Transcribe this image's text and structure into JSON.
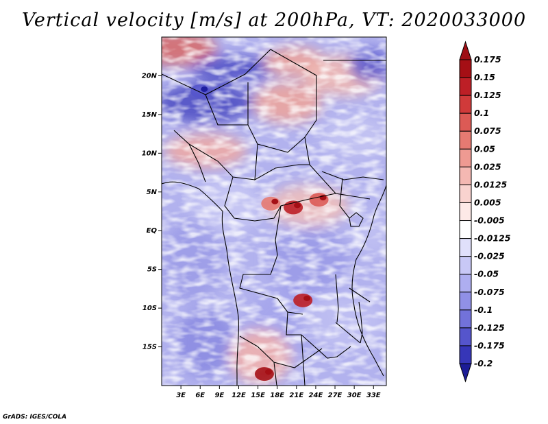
{
  "title": "Vertical velocity [m/s] at 200hPa, VT: 2020033000",
  "credit": "GrADS: IGES/COLA",
  "chart_data": {
    "type": "heatmap",
    "variable": "Vertical velocity",
    "units": "m/s",
    "level": "200hPa",
    "valid_time": "2020033000",
    "lon_range": [
      0,
      35
    ],
    "lat_range": [
      -20,
      25
    ],
    "x_ticks": [
      {
        "value": 3,
        "label": "3E"
      },
      {
        "value": 6,
        "label": "6E"
      },
      {
        "value": 9,
        "label": "9E"
      },
      {
        "value": 12,
        "label": "12E"
      },
      {
        "value": 15,
        "label": "15E"
      },
      {
        "value": 18,
        "label": "18E"
      },
      {
        "value": 21,
        "label": "21E"
      },
      {
        "value": 24,
        "label": "24E"
      },
      {
        "value": 27,
        "label": "27E"
      },
      {
        "value": 30,
        "label": "30E"
      },
      {
        "value": 33,
        "label": "33E"
      }
    ],
    "y_ticks": [
      {
        "value": 20,
        "label": "20N"
      },
      {
        "value": 15,
        "label": "15N"
      },
      {
        "value": 10,
        "label": "10N"
      },
      {
        "value": 5,
        "label": "5N"
      },
      {
        "value": 0,
        "label": "EQ"
      },
      {
        "value": -5,
        "label": "5S"
      },
      {
        "value": -10,
        "label": "10S"
      },
      {
        "value": -15,
        "label": "15S"
      }
    ],
    "colorbar": {
      "levels": [
        {
          "label": "0.175",
          "color": "#a50f15"
        },
        {
          "label": "0.15",
          "color": "#bd1f26"
        },
        {
          "label": "0.125",
          "color": "#d03a3a"
        },
        {
          "label": "0.1",
          "color": "#dc5a55"
        },
        {
          "label": "0.075",
          "color": "#e67a72"
        },
        {
          "label": "0.05",
          "color": "#ee9a92"
        },
        {
          "label": "0.025",
          "color": "#f4b8b2"
        },
        {
          "label": "0.0125",
          "color": "#f9d3cf"
        },
        {
          "label": "0.005",
          "color": "#fde9e7"
        },
        {
          "label": "-0.005",
          "color": "#ffffff"
        },
        {
          "label": "-0.0125",
          "color": "#e0e0fb"
        },
        {
          "label": "-0.025",
          "color": "#c8c8f6"
        },
        {
          "label": "-0.05",
          "color": "#aeaef0"
        },
        {
          "label": "-0.075",
          "color": "#9090e6"
        },
        {
          "label": "-0.1",
          "color": "#7272da"
        },
        {
          "label": "-0.125",
          "color": "#5555cc"
        },
        {
          "label": "-0.175",
          "color": "#3636b8"
        },
        {
          "label": "-0.2",
          "color": "#1f1fa0"
        }
      ],
      "top_color": "#9e0f16",
      "bottom_color": "#1c1c96"
    },
    "features": [
      {
        "label": "strong ascent",
        "lon": 20.5,
        "lat": 3.0,
        "value": 0.15
      },
      {
        "label": "strong ascent",
        "lon": 24.5,
        "lat": 4.0,
        "value": 0.1
      },
      {
        "label": "strong ascent",
        "lon": 17.0,
        "lat": 3.5,
        "value": 0.075
      },
      {
        "label": "strong ascent",
        "lon": 22.0,
        "lat": -9.0,
        "value": 0.15
      },
      {
        "label": "strong ascent",
        "lon": 16.0,
        "lat": -18.5,
        "value": 0.175
      },
      {
        "label": "subsidence band",
        "lon": 6.0,
        "lat": 18.0,
        "value": -0.15
      }
    ]
  }
}
